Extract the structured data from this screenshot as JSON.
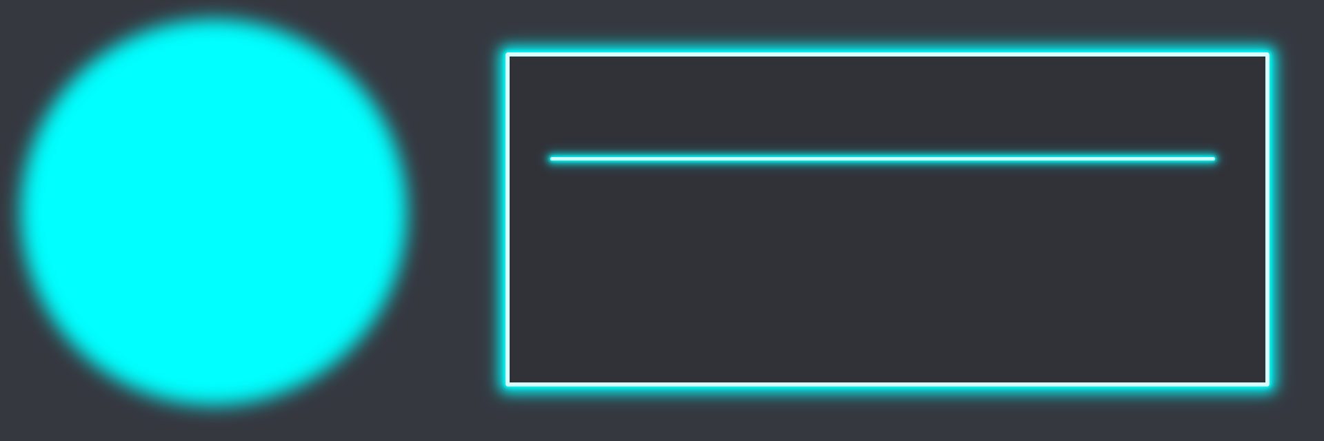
{
  "colors": {
    "background": "#363840",
    "orb": "#00ffff",
    "panel_fill": "#313238",
    "panel_border": "#d8ffff",
    "glow": "#00ffff",
    "line": "#c8ffff"
  }
}
